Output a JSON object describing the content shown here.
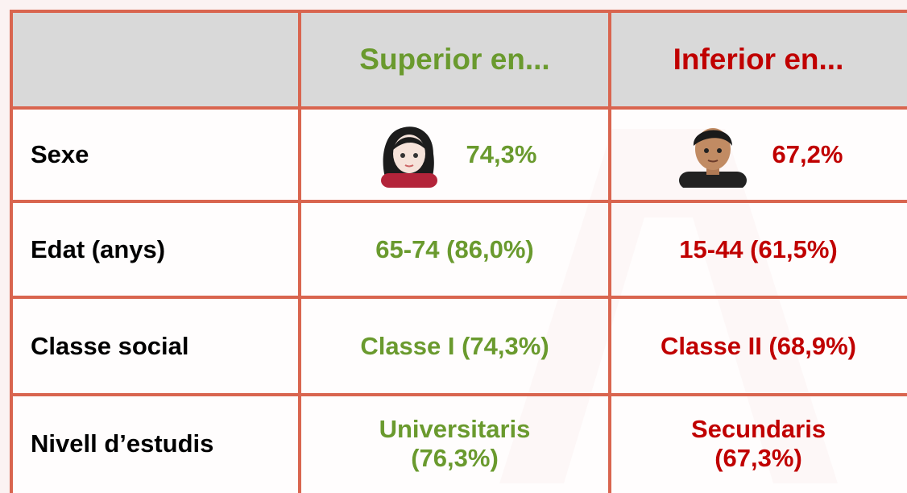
{
  "table": {
    "header": [
      "",
      "Superior en...",
      "Inferior en..."
    ],
    "rows": [
      [
        "Sexe",
        [
          "74,3%"
        ],
        [
          "67,2%"
        ]
      ],
      [
        "Edat (anys)",
        [
          "65-74 (86,0%)"
        ],
        [
          "15-44 (61,5%)"
        ]
      ],
      [
        "Classe social",
        [
          "Classe I (74,3%)"
        ],
        [
          "Classe II (68,9%)"
        ]
      ],
      [
        "Nivell d’estudis",
        [
          "Universitaris",
          "(76,3%)"
        ],
        [
          "Secundaris",
          "(67,3%)"
        ]
      ]
    ]
  }
}
